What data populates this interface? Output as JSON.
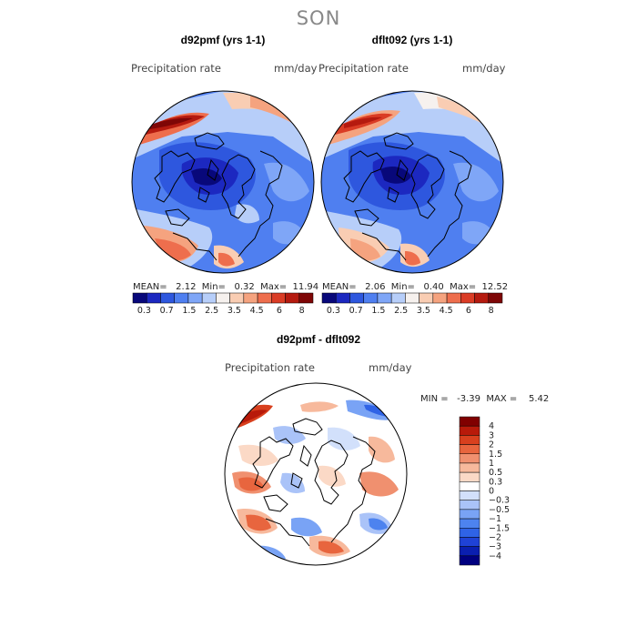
{
  "season": "SON",
  "palette": {
    "abs": [
      "#08087a",
      "#1c28c0",
      "#2e57de",
      "#4f7ff0",
      "#7fa6f7",
      "#b7cef9",
      "#f6f1ee",
      "#f9cdb3",
      "#f5a37f",
      "#ee6e4d",
      "#da3c25",
      "#b51a0f",
      "#7e0606"
    ],
    "diff": [
      "#000080",
      "#0a1fb0",
      "#1f42d6",
      "#2f63e6",
      "#4d83ef",
      "#79a3f5",
      "#aac3f8",
      "#d2e0fb",
      "#ffffff",
      "#fbd9c6",
      "#f7b99c",
      "#f0906f",
      "#e8653e",
      "#d8401e",
      "#b81a0a",
      "#800000"
    ]
  },
  "panels": [
    {
      "title": "d92pmf (yrs 1-1)",
      "variable": "Precipitation rate",
      "units": "mm/day",
      "stats_text": "MEAN=   2.12  Min=   0.32  Max=  11.94",
      "colorbar_ticks": [
        "0.3",
        "0.7",
        "1.5",
        "2.5",
        "3.5",
        "4.5",
        "6",
        "8"
      ]
    },
    {
      "title": "dflt092 (yrs 1-1)",
      "variable": "Precipitation rate",
      "units": "mm/day",
      "stats_text": "MEAN=   2.06  Min=   0.40  Max=  12.52",
      "colorbar_ticks": [
        "0.3",
        "0.7",
        "1.5",
        "2.5",
        "3.5",
        "4.5",
        "6",
        "8"
      ]
    }
  ],
  "diff": {
    "title": "d92pmf - dflt092",
    "variable": "Precipitation rate",
    "units": "mm/day",
    "stats_text": "MIN =   -3.39  MAX =    5.42",
    "levels": [
      "4",
      "3",
      "2",
      "1.5",
      "1",
      "0.5",
      "0.3",
      "0",
      "−0.3",
      "−0.5",
      "−1",
      "−1.5",
      "−2",
      "−3",
      "−4"
    ]
  }
}
